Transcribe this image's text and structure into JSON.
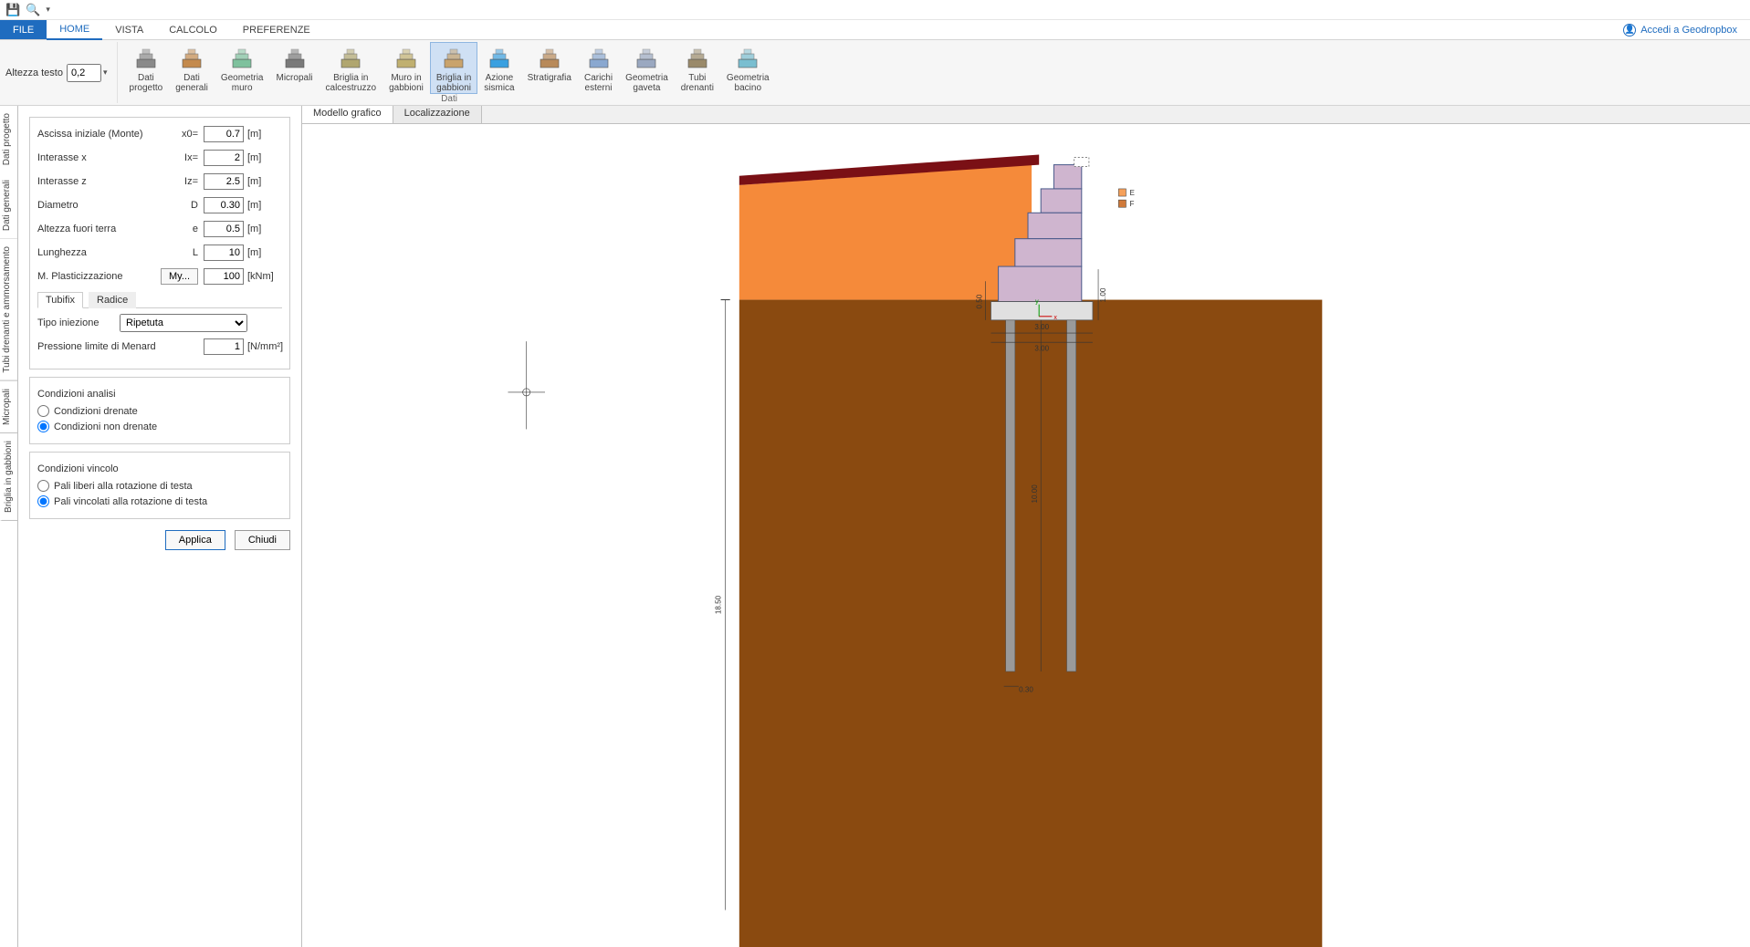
{
  "qat": {
    "save_tip": "Salva",
    "preview_tip": "Anteprima"
  },
  "tabs": {
    "file": "FILE",
    "home": "HOME",
    "vista": "VISTA",
    "calcolo": "CALCOLO",
    "preferenze": "PREFERENZE"
  },
  "account": {
    "label": "Accedi a Geodropbox"
  },
  "ribbon": {
    "alt_testo_label": "Altezza testo",
    "alt_testo_value": "0,2",
    "buttons": [
      {
        "label": "Dati\nprogetto",
        "ico_color": "#8a8a8a"
      },
      {
        "label": "Dati\ngenerali",
        "ico_color": "#c48a4d"
      },
      {
        "label": "Geometria\nmuro",
        "ico_color": "#7ec19d"
      },
      {
        "label": "Micropali",
        "ico_color": "#7a7a7a"
      },
      {
        "label": "Briglia in\ncalcestruzzo",
        "ico_color": "#b0a66f"
      },
      {
        "label": "Muro in\ngabbioni",
        "ico_color": "#c0b070"
      },
      {
        "label": "Briglia in\ngabbioni",
        "ico_color": "#c9a36c",
        "active": true
      },
      {
        "label": "Azione\nsismica",
        "ico_color": "#3aa0e0"
      },
      {
        "label": "Stratigrafia",
        "ico_color": "#b88a5a"
      },
      {
        "label": "Carichi\nesterni",
        "ico_color": "#8aa8d0"
      },
      {
        "label": "Geometria\ngaveta",
        "ico_color": "#9aa8c0"
      },
      {
        "label": "Tubi\ndrenanti",
        "ico_color": "#9a8a6a"
      },
      {
        "label": "Geometria\nbacino",
        "ico_color": "#7abed0"
      }
    ],
    "group_caption": "Dati"
  },
  "vtabs": [
    "Dati progetto",
    "Dati generali",
    "Tubi drenanti e ammorsamento",
    "Micropali",
    "Briglia in gabbioni"
  ],
  "panel": {
    "rows": [
      {
        "label": "Ascissa iniziale (Monte)",
        "sym": "x0=",
        "value": "0.7",
        "unit": "[m]"
      },
      {
        "label": "Interasse x",
        "sym": "Ix=",
        "value": "2",
        "unit": "[m]"
      },
      {
        "label": "Interasse z",
        "sym": "Iz=",
        "value": "2.5",
        "unit": "[m]"
      },
      {
        "label": "Diametro",
        "sym": "D",
        "value": "0.30",
        "unit": "[m]"
      },
      {
        "label": "Altezza fuori terra",
        "sym": "e",
        "value": "0.5",
        "unit": "[m]"
      },
      {
        "label": "Lunghezza",
        "sym": "L",
        "value": "10",
        "unit": "[m]"
      }
    ],
    "mplast": {
      "label": "M. Plasticizzazione",
      "btn": "My...",
      "value": "100",
      "unit": "[kNm]"
    },
    "subtabs": {
      "a": "Tubifix",
      "b": "Radice"
    },
    "tipo_iniezione": {
      "label": "Tipo iniezione",
      "value": "Ripetuta"
    },
    "menard": {
      "label": "Pressione limite di Menard",
      "value": "1",
      "unit": "[N/mm²]"
    },
    "cond_analisi": {
      "title": "Condizioni analisi",
      "opt1": "Condizioni drenate",
      "opt2": "Condizioni non drenate"
    },
    "cond_vincolo": {
      "title": "Condizioni vincolo",
      "opt1": "Pali liberi alla rotazione di testa",
      "opt2": "Pali vincolati alla rotazione di testa"
    },
    "btn_applica": "Applica",
    "btn_chiudi": "Chiudi"
  },
  "canvas_tabs": {
    "a": "Modello grafico",
    "b": "Localizzazione"
  },
  "drawing": {
    "soil_color": "#8a4a10",
    "fill_color": "#f58a3a",
    "top_crest_color": "#7a1015",
    "block_fill": "#cfb5cf",
    "block_stroke": "#4a5a8a",
    "base_fill": "#e0e0e0",
    "pile_fill": "#9a9a9a",
    "dims": {
      "depth": "18.50",
      "base_w": "3.00",
      "base_w2": "3.00",
      "pile_len": "10.00",
      "pile_d": "0.30",
      "right_h": "1.00",
      "left_h": "0.50"
    },
    "legend": {
      "e": "E",
      "f": "F"
    }
  }
}
